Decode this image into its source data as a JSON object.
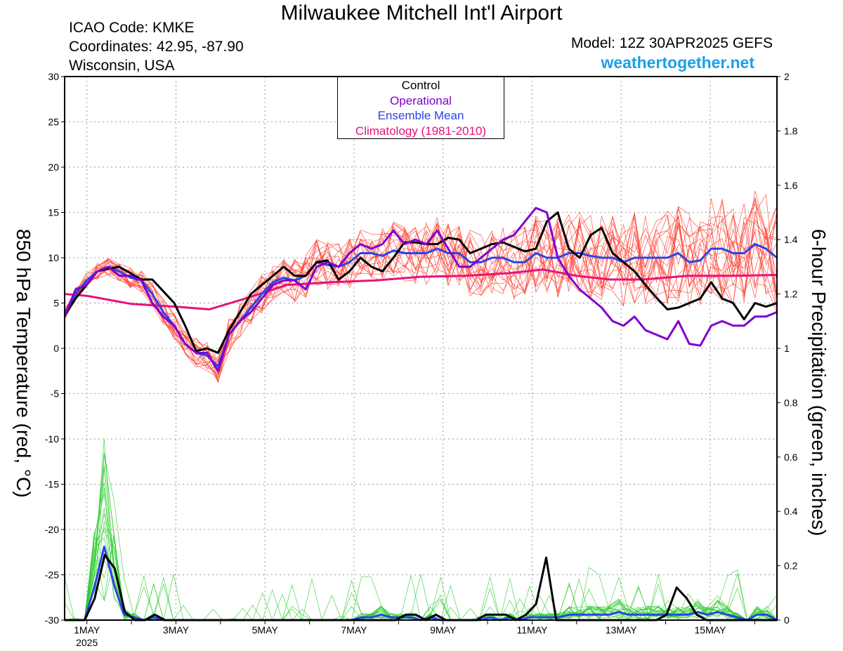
{
  "header": {
    "title": "Milwaukee Mitchell Int'l Airport",
    "icao": "ICAO Code: KMKE",
    "coords": "Coordinates: 42.95, -87.90",
    "region": "Wisconsin, USA",
    "model": "Model: 12Z 30APR2025 GEFS",
    "brand": "weathertogether.net"
  },
  "legend": {
    "control": "Control",
    "operational": "Operational",
    "mean": "Ensemble Mean",
    "climo": "Climatology (1981-2010)"
  },
  "colors": {
    "control": "#000000",
    "operational": "#8000d0",
    "mean": "#2a44e6",
    "climo": "#e8127a",
    "members_temp": "#ff3a2a",
    "members_precip": "#2ecc2e",
    "brand": "#1a9fe8"
  },
  "chart_data": {
    "type": "line",
    "xlabel": "",
    "y_left_label": "850 hPa Temperature (red, °C)",
    "y_right_label": "6-hour Precipitation (green, inches)",
    "ylim_left": [
      -30,
      30
    ],
    "ylim_right": [
      0,
      2
    ],
    "xlim_days": [
      0.5,
      16.5
    ],
    "x_ticks": [
      {
        "day": 1,
        "label": "1MAY",
        "sub": "2025"
      },
      {
        "day": 3,
        "label": "3MAY",
        "sub": ""
      },
      {
        "day": 5,
        "label": "5MAY",
        "sub": ""
      },
      {
        "day": 7,
        "label": "7MAY",
        "sub": ""
      },
      {
        "day": 9,
        "label": "9MAY",
        "sub": ""
      },
      {
        "day": 11,
        "label": "11MAY",
        "sub": ""
      },
      {
        "day": 13,
        "label": "13MAY",
        "sub": ""
      },
      {
        "day": 15,
        "label": "15MAY",
        "sub": ""
      }
    ],
    "y_left_ticks": [
      30,
      25,
      20,
      15,
      10,
      5,
      0,
      -5,
      -10,
      -15,
      -20,
      -25,
      -30
    ],
    "y_right_ticks": [
      "2",
      "1.8",
      "1.6",
      "1.4",
      "1.2",
      "1",
      "0.8",
      "0.6",
      "0.4",
      "0.2",
      "0"
    ],
    "grid": true,
    "legend_position": "top-center",
    "series": [
      {
        "name": "Control",
        "key": "control",
        "axis": "temp",
        "values": [
          3.6,
          5.5,
          7.0,
          8.5,
          8.8,
          9.0,
          8.3,
          7.6,
          7.6,
          6.3,
          5.0,
          2.5,
          -0.3,
          0.0,
          -0.5,
          2.0,
          4.0,
          6.0,
          7.0,
          8.0,
          9.0,
          8.0,
          8.0,
          9.5,
          9.7,
          7.6,
          8.5,
          10.0,
          9.0,
          8.5,
          10.0,
          11.7,
          11.7,
          11.5,
          11.5,
          12.2,
          12.0,
          10.5,
          11.0,
          11.5,
          11.7,
          11.2,
          10.7,
          11.0,
          14.0,
          15.0,
          11.0,
          10.0,
          12.5,
          13.3,
          10.5,
          9.5,
          8.5,
          7.0,
          5.6,
          4.3,
          4.5,
          5.0,
          5.5,
          7.3,
          5.5,
          5.0,
          3.2,
          5.0,
          4.6,
          5.0
        ]
      },
      {
        "name": "Operational",
        "key": "operational",
        "axis": "temp",
        "values": [
          3.5,
          6.5,
          7.0,
          8.5,
          9.0,
          8.0,
          8.0,
          7.5,
          5.0,
          3.5,
          2.5,
          0.5,
          -0.5,
          -0.5,
          -2.5,
          1.5,
          3.0,
          4.0,
          5.5,
          7.0,
          7.5,
          7.5,
          6.5,
          9.0,
          9.5,
          9.0,
          10.5,
          11.5,
          11.0,
          11.5,
          13.0,
          11.5,
          12.0,
          11.5,
          13.0,
          11.0,
          9.0,
          9.0,
          10.0,
          11.0,
          12.0,
          12.5,
          14.0,
          15.5,
          15.0,
          10.0,
          8.0,
          6.5,
          5.5,
          4.5,
          3.0,
          2.5,
          3.5,
          2.0,
          1.5,
          1.0,
          3.0,
          0.5,
          0.3,
          2.5,
          3.0,
          2.5,
          2.5,
          3.5,
          3.5,
          4.0
        ]
      },
      {
        "name": "Ensemble Mean",
        "key": "mean",
        "axis": "temp",
        "values": [
          3.8,
          6.0,
          7.5,
          8.5,
          9.0,
          8.5,
          7.8,
          7.5,
          6.0,
          4.0,
          2.5,
          0.5,
          -0.5,
          -0.8,
          -2.0,
          1.5,
          3.0,
          4.5,
          6.0,
          7.3,
          7.8,
          7.5,
          8.0,
          9.5,
          9.2,
          9.0,
          9.5,
          10.5,
          10.5,
          10.2,
          10.8,
          10.5,
          10.5,
          10.5,
          11.0,
          10.5,
          10.5,
          9.5,
          9.5,
          10.0,
          10.0,
          9.5,
          9.5,
          10.5,
          10.0,
          10.0,
          10.5,
          10.5,
          10.2,
          10.0,
          10.0,
          9.5,
          10.0,
          10.0,
          10.0,
          10.0,
          10.5,
          9.5,
          9.7,
          11.0,
          11.0,
          10.5,
          10.5,
          11.5,
          11.0,
          10.0
        ]
      },
      {
        "name": "Climatology (1981-2010)",
        "key": "climo",
        "axis": "temp",
        "x_days": [
          0.5,
          1.0,
          2.0,
          3.0,
          3.75,
          4.5,
          5.5,
          6.5,
          7.5,
          8.5,
          9.5,
          10.5,
          11.25,
          12.0,
          12.75,
          13.5,
          14.5,
          15.5,
          16.5
        ],
        "values": [
          6.0,
          5.8,
          4.9,
          4.6,
          4.3,
          5.4,
          7.0,
          7.3,
          7.5,
          7.9,
          8.0,
          8.3,
          8.7,
          8.0,
          7.6,
          7.6,
          8.0,
          8.0,
          8.1
        ]
      },
      {
        "name": "Control",
        "key": "control",
        "axis": "precip",
        "values": [
          0,
          0,
          0,
          0.08,
          0.24,
          0.19,
          0.03,
          0.0,
          0.0,
          0.02,
          0.0,
          0,
          0,
          0,
          0,
          0,
          0,
          0,
          0,
          0,
          0,
          0,
          0,
          0,
          0,
          0,
          0,
          0,
          0,
          0,
          0,
          0,
          0,
          0,
          0.02,
          0.02,
          0.0,
          0.02,
          0.0,
          0.0,
          0.0,
          0.0,
          0.02,
          0.02,
          0.02,
          0.0,
          0.02,
          0.06,
          0.23,
          0.0,
          0.0,
          0,
          0,
          0,
          0,
          0,
          0,
          0,
          0.0,
          0.0,
          0.02,
          0.12,
          0.08,
          0.02,
          0.0,
          0.0,
          0,
          0,
          0,
          0,
          0,
          0
        ]
      },
      {
        "name": "Ensemble Mean",
        "key": "mean",
        "axis": "precip",
        "values": [
          0,
          0,
          0,
          0.12,
          0.27,
          0.13,
          0.02,
          0.01,
          0.0,
          0.01,
          0.0,
          0,
          0,
          0,
          0,
          0,
          0,
          0,
          0,
          0,
          0,
          0,
          0,
          0,
          0,
          0,
          0,
          0,
          0,
          0.0,
          0.01,
          0.01,
          0.02,
          0.01,
          0.01,
          0.01,
          0.0,
          0.01,
          0.0,
          0.0,
          0.0,
          0.0,
          0.0,
          0.01,
          0.0,
          0.01,
          0.0,
          0.01,
          0.01,
          0.01,
          0.01,
          0.02,
          0.02,
          0.02,
          0.02,
          0.02,
          0.03,
          0.02,
          0.02,
          0.02,
          0.02,
          0.02,
          0.02,
          0.02,
          0.03,
          0.02,
          0.03,
          0.02,
          0.01,
          0.0,
          0.02,
          0.02,
          0.0
        ]
      }
    ]
  }
}
